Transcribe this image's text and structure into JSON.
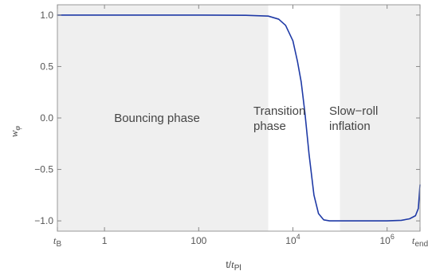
{
  "chart_data": {
    "type": "line",
    "title": "",
    "xlabel": "t/t_Pl",
    "ylabel": "w_φ",
    "x_scale": "log",
    "xlim": [
      0.1,
      5000000
    ],
    "ylim": [
      -1.1,
      1.1
    ],
    "grid": false,
    "colors": {
      "line": "#1f3aa6",
      "shade": "#efefef",
      "frame": "#999999"
    },
    "x_ticks": [
      {
        "value": 0.1,
        "label": "t_B",
        "base": "t",
        "sub": "B"
      },
      {
        "value": 1,
        "label": "1"
      },
      {
        "value": 100,
        "label": "100"
      },
      {
        "value": 10000,
        "label": "10^4",
        "base": "10",
        "sup": "4"
      },
      {
        "value": 1000000,
        "label": "10^6",
        "base": "10",
        "sup": "6"
      },
      {
        "value": 5000000,
        "label": "t_end",
        "base": "t",
        "sub": "end"
      }
    ],
    "y_ticks": [
      {
        "value": 1.0,
        "label": "1.0"
      },
      {
        "value": 0.5,
        "label": "0.5"
      },
      {
        "value": 0.0,
        "label": "0.0"
      },
      {
        "value": -0.5,
        "label": "−0.5"
      },
      {
        "value": -1.0,
        "label": "−1.0"
      }
    ],
    "regions": [
      {
        "name": "bouncing",
        "x_from": 0.1,
        "x_to": 3000,
        "shaded": true,
        "label_lines": [
          "Bouncing phase"
        ]
      },
      {
        "name": "transition",
        "x_from": 3000,
        "x_to": 100000,
        "shaded": false,
        "label_lines": [
          "Transition",
          "phase"
        ]
      },
      {
        "name": "slow-roll",
        "x_from": 100000,
        "x_to": 5000000,
        "shaded": true,
        "label_lines": [
          "Slow−roll",
          "inflation"
        ]
      }
    ],
    "series": [
      {
        "x": [
          0.1,
          1,
          10,
          100,
          1000,
          3000,
          5000,
          7000,
          10000,
          12500,
          15000,
          18000,
          22000,
          28000,
          35000,
          45000,
          60000,
          80000,
          100000,
          300000,
          1000000,
          2000000,
          3000000,
          4000000,
          4600000,
          5000000
        ],
        "y": [
          1.0,
          1.0,
          1.0,
          1.0,
          0.998,
          0.99,
          0.96,
          0.9,
          0.75,
          0.55,
          0.35,
          0.05,
          -0.35,
          -0.75,
          -0.93,
          -0.99,
          -1.0,
          -1.0,
          -1.0,
          -1.0,
          -1.0,
          -0.995,
          -0.98,
          -0.95,
          -0.88,
          -0.65
        ]
      }
    ]
  }
}
